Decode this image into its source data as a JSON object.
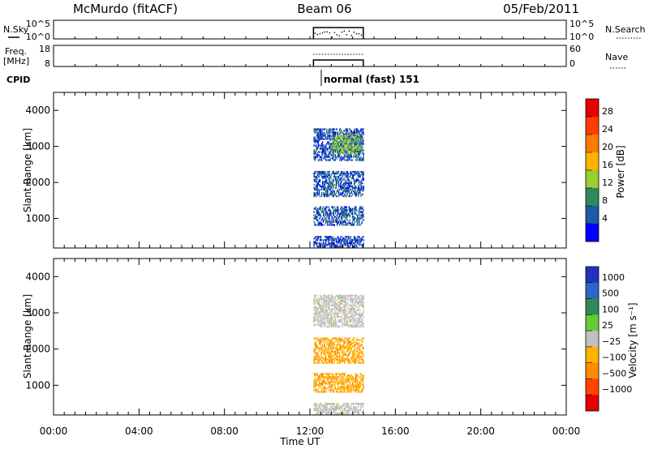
{
  "header": {
    "station": "McMurdo (fitACF)",
    "beam": "Beam 06",
    "date": "05/Feb/2011"
  },
  "panels": {
    "nsky": {
      "left_label": "N.Sky",
      "right_label": "N.Search",
      "ticks_left": [
        "10^5",
        "10^0"
      ],
      "ticks_right": [
        "10^5",
        "10^0"
      ]
    },
    "freq": {
      "left_label_1": "Freq.",
      "left_label_2": "[MHz]",
      "right_label": "Nave",
      "ticks_left": [
        "18",
        "8"
      ],
      "ticks_right": [
        "60",
        "0"
      ]
    },
    "cpid": {
      "label": "CPID",
      "value": "normal (fast) 151"
    }
  },
  "x_axis": {
    "label": "Time UT",
    "ticks": [
      "00:00",
      "04:00",
      "08:00",
      "12:00",
      "16:00",
      "20:00",
      "00:00"
    ]
  },
  "colorbars": {
    "power": {
      "label": "Power [dB]",
      "ticks": [
        "28",
        "24",
        "20",
        "16",
        "12",
        "8",
        "4"
      ],
      "colors": [
        "#e60000",
        "#ff3d00",
        "#ff7a00",
        "#ffb300",
        "#9acd32",
        "#2e8b57",
        "#1e5aa8",
        "#0000ff"
      ]
    },
    "velocity": {
      "label": "Velocity [m s⁻¹]",
      "ticks": [
        "1000",
        "500",
        "100",
        "25",
        "−25",
        "−100",
        "−500",
        "−1000"
      ],
      "colors": [
        "#2233bb",
        "#2e66c8",
        "#2e8b57",
        "#66cc33",
        "#c0c0c0",
        "#ffb300",
        "#ff8c00",
        "#ff4500",
        "#e60000"
      ]
    }
  },
  "chart_data": [
    {
      "type": "heatmap",
      "title": "Power",
      "xlabel": "Time UT",
      "ylabel": "Slant Range [km]",
      "xlim": [
        "00:00",
        "24:00"
      ],
      "ylim": [
        180,
        4500
      ],
      "yticks": [
        1000,
        2000,
        3000,
        4000
      ],
      "colorbar": {
        "label": "Power [dB]",
        "range": [
          0,
          32
        ]
      },
      "data_window_ut": [
        "12:10",
        "14:30"
      ],
      "regions": [
        {
          "t": [
            "12:10",
            "14:30"
          ],
          "range_km": [
            2600,
            3500
          ],
          "value_db": 6
        },
        {
          "t": [
            "13:00",
            "14:20"
          ],
          "range_km": [
            2800,
            3300
          ],
          "value_db": 12
        },
        {
          "t": [
            "12:10",
            "14:30"
          ],
          "range_km": [
            1600,
            2300
          ],
          "value_db": 6
        },
        {
          "t": [
            "12:10",
            "14:30"
          ],
          "range_km": [
            800,
            1300
          ],
          "value_db": 6
        },
        {
          "t": [
            "12:10",
            "14:30"
          ],
          "range_km": [
            200,
            500
          ],
          "value_db": 5
        }
      ]
    },
    {
      "type": "heatmap",
      "title": "Velocity",
      "xlabel": "Time UT",
      "ylabel": "Slant Range [km]",
      "xlim": [
        "00:00",
        "24:00"
      ],
      "ylim": [
        180,
        4500
      ],
      "yticks": [
        1000,
        2000,
        3000,
        4000
      ],
      "colorbar": {
        "label": "Velocity [m s⁻¹]",
        "range": [
          -1000,
          1000
        ]
      },
      "data_window_ut": [
        "12:10",
        "14:30"
      ],
      "regions": [
        {
          "t": [
            "12:10",
            "14:30"
          ],
          "range_km": [
            2600,
            3500
          ],
          "value_ms": 0
        },
        {
          "t": [
            "12:10",
            "14:30"
          ],
          "range_km": [
            1600,
            2300
          ],
          "value_ms": -300
        },
        {
          "t": [
            "12:10",
            "14:30"
          ],
          "range_km": [
            800,
            1300
          ],
          "value_ms": -300
        },
        {
          "t": [
            "12:10",
            "14:30"
          ],
          "range_km": [
            200,
            500
          ],
          "value_ms": 0
        }
      ]
    }
  ]
}
